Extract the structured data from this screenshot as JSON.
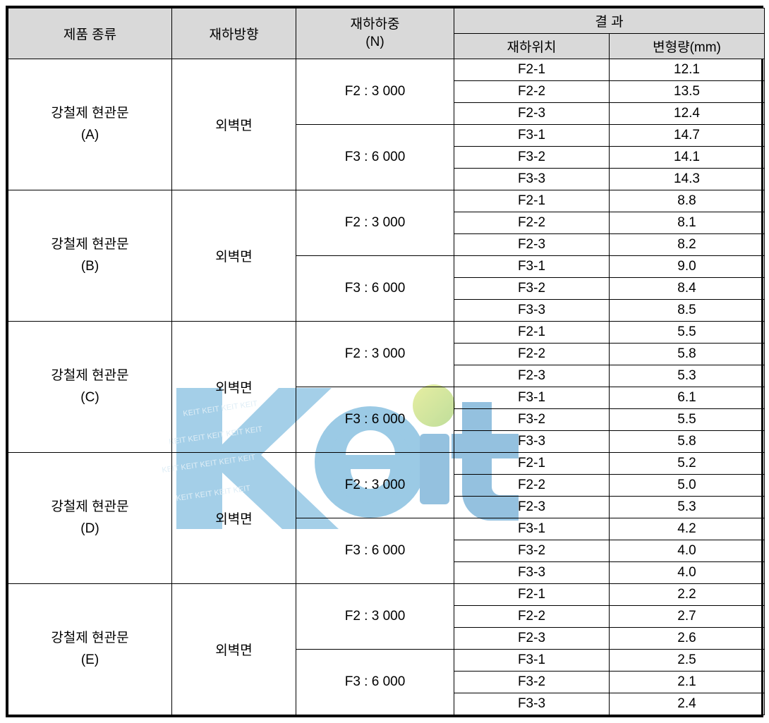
{
  "headers": {
    "product": "제품 종류",
    "direction": "재하방향",
    "load_line1": "재하하중",
    "load_line2": "(N)",
    "result": "결   과",
    "position": "재하위치",
    "deformation": "변형량(mm)"
  },
  "direction_label": "외벽면",
  "load_f2": "F2 : 3 000",
  "load_f3": "F3 : 6 000",
  "products": [
    {
      "name_line1": "강철제 현관문",
      "name_line2": "(A)",
      "loads": [
        {
          "label": "F2 : 3 000",
          "rows": [
            {
              "pos": "F2-1",
              "val": "12.1"
            },
            {
              "pos": "F2-2",
              "val": "13.5"
            },
            {
              "pos": "F2-3",
              "val": "12.4"
            }
          ]
        },
        {
          "label": "F3 : 6 000",
          "rows": [
            {
              "pos": "F3-1",
              "val": "14.7"
            },
            {
              "pos": "F3-2",
              "val": "14.1"
            },
            {
              "pos": "F3-3",
              "val": "14.3"
            }
          ]
        }
      ]
    },
    {
      "name_line1": "강철제 현관문",
      "name_line2": "(B)",
      "loads": [
        {
          "label": "F2 : 3 000",
          "rows": [
            {
              "pos": "F2-1",
              "val": "8.8"
            },
            {
              "pos": "F2-2",
              "val": "8.1"
            },
            {
              "pos": "F2-3",
              "val": "8.2"
            }
          ]
        },
        {
          "label": "F3 : 6 000",
          "rows": [
            {
              "pos": "F3-1",
              "val": "9.0"
            },
            {
              "pos": "F3-2",
              "val": "8.4"
            },
            {
              "pos": "F3-3",
              "val": "8.5"
            }
          ]
        }
      ]
    },
    {
      "name_line1": "강철제 현관문",
      "name_line2": "(C)",
      "loads": [
        {
          "label": "F2 : 3 000",
          "rows": [
            {
              "pos": "F2-1",
              "val": "5.5"
            },
            {
              "pos": "F2-2",
              "val": "5.8"
            },
            {
              "pos": "F2-3",
              "val": "5.3"
            }
          ]
        },
        {
          "label": "F3 : 6 000",
          "rows": [
            {
              "pos": "F3-1",
              "val": "6.1"
            },
            {
              "pos": "F3-2",
              "val": "5.5"
            },
            {
              "pos": "F3-3",
              "val": "5.8"
            }
          ]
        }
      ]
    },
    {
      "name_line1": "강철제 현관문",
      "name_line2": "(D)",
      "loads": [
        {
          "label": "F2 : 3 000",
          "rows": [
            {
              "pos": "F2-1",
              "val": "5.2"
            },
            {
              "pos": "F2-2",
              "val": "5.0"
            },
            {
              "pos": "F2-3",
              "val": "5.3"
            }
          ]
        },
        {
          "label": "F3 : 6 000",
          "rows": [
            {
              "pos": "F3-1",
              "val": "4.2"
            },
            {
              "pos": "F3-2",
              "val": "4.0"
            },
            {
              "pos": "F3-3",
              "val": "4.0"
            }
          ]
        }
      ]
    },
    {
      "name_line1": "강철제 현관문",
      "name_line2": "(E)",
      "loads": [
        {
          "label": "F2 : 3 000",
          "rows": [
            {
              "pos": "F2-1",
              "val": "2.2"
            },
            {
              "pos": "F2-2",
              "val": "2.7"
            },
            {
              "pos": "F2-3",
              "val": "2.6"
            }
          ]
        },
        {
          "label": "F3 : 6 000",
          "rows": [
            {
              "pos": "F3-1",
              "val": "2.5"
            },
            {
              "pos": "F3-2",
              "val": "2.1"
            },
            {
              "pos": "F3-3",
              "val": "2.4"
            }
          ]
        }
      ]
    }
  ],
  "watermark": {
    "text": "Keit",
    "color_k": "#5aa9d6",
    "color_e": "#4a9fd0",
    "color_dot": "#a8cc3f",
    "color_it": "#3d8fc5"
  }
}
